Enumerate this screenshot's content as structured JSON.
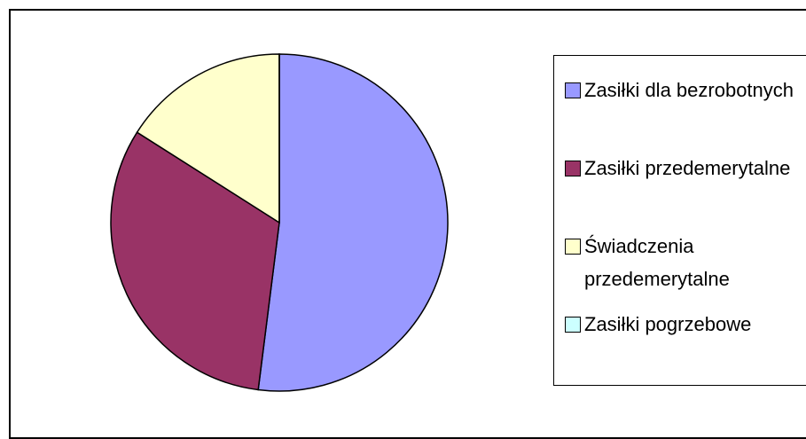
{
  "chart_data": {
    "type": "pie",
    "categories": [
      "Zasiłki dla bezrobotnych",
      "Zasiłki przedemerytalne",
      "Świadczenia przedemerytalne",
      "Zasiłki pogrzebowe"
    ],
    "values": [
      52,
      32,
      16,
      0
    ],
    "colors": [
      "#9999ff",
      "#993366",
      "#ffffcc",
      "#ccffff"
    ],
    "legend": "right"
  }
}
